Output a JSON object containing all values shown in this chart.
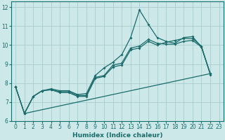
{
  "xlabel": "Humidex (Indice chaleur)",
  "background_color": "#cce8e8",
  "grid_color": "#aacccc",
  "line_color": "#1a6b6b",
  "xlim": [
    -0.5,
    23.5
  ],
  "ylim": [
    6,
    12.3
  ],
  "x_ticks": [
    0,
    1,
    2,
    3,
    4,
    5,
    6,
    7,
    8,
    9,
    10,
    11,
    12,
    13,
    14,
    15,
    16,
    17,
    18,
    19,
    20,
    21,
    22,
    23
  ],
  "y_ticks": [
    6,
    7,
    8,
    9,
    10,
    11,
    12
  ],
  "series1_x": [
    0,
    1,
    2,
    3,
    4,
    5,
    6,
    7,
    8,
    9,
    10,
    11,
    12,
    13,
    14,
    15,
    16,
    17,
    18,
    19,
    20,
    21,
    22
  ],
  "series1_y": [
    7.8,
    6.4,
    7.3,
    7.6,
    7.7,
    7.6,
    7.6,
    7.4,
    7.45,
    8.4,
    8.8,
    9.1,
    9.5,
    10.4,
    11.85,
    11.1,
    10.4,
    10.2,
    10.1,
    10.4,
    10.45,
    9.9,
    8.5
  ],
  "series2_x": [
    0,
    1,
    2,
    3,
    4,
    5,
    6,
    7,
    8,
    9,
    10,
    11,
    12,
    13,
    14,
    15,
    16,
    17,
    18,
    19,
    20,
    21,
    22
  ],
  "series2_y": [
    7.8,
    6.4,
    7.3,
    7.6,
    7.65,
    7.55,
    7.55,
    7.35,
    7.35,
    8.3,
    8.4,
    8.95,
    9.05,
    9.85,
    9.95,
    10.3,
    10.1,
    10.05,
    10.05,
    10.2,
    10.25,
    9.9,
    8.5
  ],
  "series3_x": [
    0,
    1,
    2,
    3,
    4,
    5,
    6,
    7,
    8,
    9,
    10,
    11,
    12,
    13,
    14,
    15,
    16,
    17,
    18,
    19,
    20,
    21,
    22
  ],
  "series3_y": [
    7.8,
    6.4,
    7.3,
    7.6,
    7.65,
    7.5,
    7.5,
    7.3,
    7.3,
    8.25,
    8.35,
    8.85,
    8.95,
    9.75,
    9.85,
    10.2,
    10.0,
    10.15,
    10.25,
    10.35,
    10.35,
    9.95,
    8.45
  ],
  "series4_x": [
    1,
    22
  ],
  "series4_y": [
    6.4,
    8.5
  ]
}
